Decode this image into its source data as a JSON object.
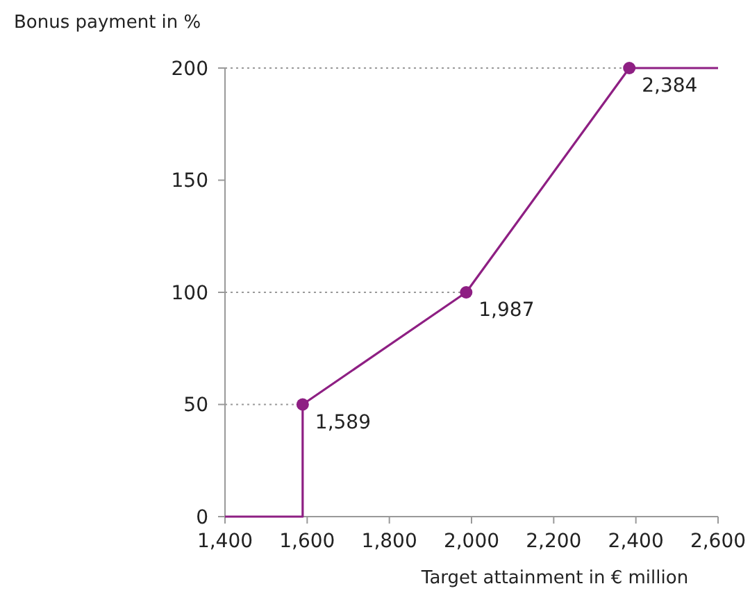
{
  "chart_data": {
    "type": "line",
    "ylabel": "Bonus payment in %",
    "xlabel": "Target attainment in € million",
    "xlim": [
      1400,
      2600
    ],
    "xticks": [
      {
        "value": 1400,
        "label": "1,400"
      },
      {
        "value": 1600,
        "label": "1,600"
      },
      {
        "value": 1800,
        "label": "1,800"
      },
      {
        "value": 2000,
        "label": "2,000"
      },
      {
        "value": 2200,
        "label": "2,200"
      },
      {
        "value": 2400,
        "label": "2,400"
      },
      {
        "value": 2600,
        "label": "2,600"
      }
    ],
    "ylim": [
      0,
      200
    ],
    "yticks": [
      0,
      50,
      100,
      150,
      200
    ],
    "series": [
      {
        "color": "#8e1f83",
        "x": [
          1400,
          1589,
          1589,
          1987,
          2384,
          2600
        ],
        "values": [
          0,
          0,
          50,
          100,
          200,
          200
        ],
        "marker": "none"
      },
      {
        "type": "scatter",
        "color": "#8e1f83",
        "x": [
          1589,
          1987,
          2384
        ],
        "values": [
          50,
          100,
          200
        ],
        "marker": "circle"
      }
    ],
    "annotations": [
      {
        "text": "1,589",
        "x": 1589,
        "y": 50
      },
      {
        "text": "1,987",
        "x": 1987,
        "y": 100
      },
      {
        "text": "2,384",
        "x": 2384,
        "y": 200
      }
    ],
    "ref_lines": [
      {
        "axis": "y",
        "value": 50,
        "line_style": "dotted",
        "color": "#999999"
      },
      {
        "axis": "y",
        "value": 100,
        "line_style": "dotted",
        "color": "#999999"
      },
      {
        "axis": "y",
        "value": 200,
        "line_style": "dotted",
        "color": "#999999"
      }
    ],
    "grid": false
  }
}
